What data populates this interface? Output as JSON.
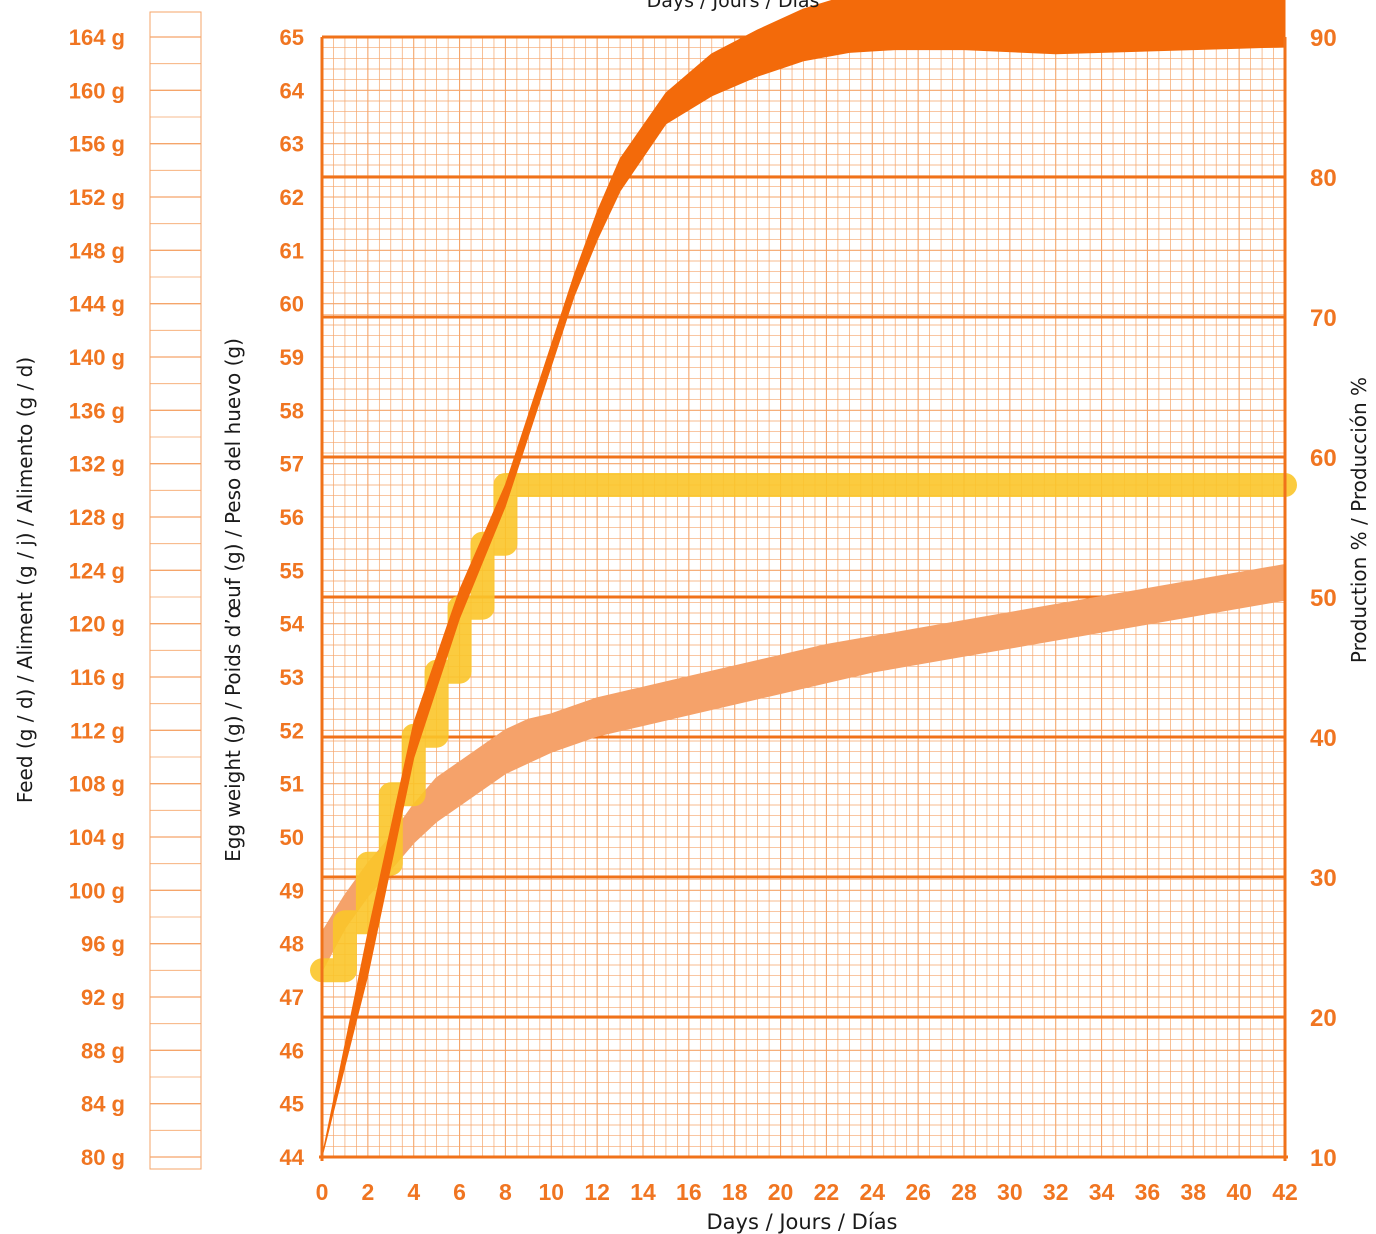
{
  "colors": {
    "accent": "#f07521",
    "grid_minor": "#f5a56a",
    "grid_major": "#f07219",
    "production_band": "#f36a0a",
    "egg_weight_band": "#f5a26a",
    "feed_line": "#fbc52a",
    "text_dark": "#1a1a1a"
  },
  "chart_data": {
    "type": "line",
    "top_title": "Days / Jours / Días",
    "xlabel": "Days / Jours / Días",
    "ylabel_feed": "Feed (g / d) / Aliment (g / j) / Alimento (g / d)",
    "ylabel_egg": "Egg weight (g) / Poids d’œuf (g) / Peso del huevo (g)",
    "ylabel_production": "Production % / Producción %",
    "x_ticks": [
      "0",
      "2",
      "4",
      "6",
      "8",
      "10",
      "12",
      "14",
      "16",
      "18",
      "20",
      "22",
      "24",
      "26",
      "28",
      "30",
      "32",
      "34",
      "36",
      "38",
      "40",
      "42"
    ],
    "xlim": [
      0,
      42
    ],
    "y_egg_ticks": [
      "44",
      "45",
      "46",
      "47",
      "48",
      "49",
      "50",
      "51",
      "52",
      "53",
      "54",
      "55",
      "56",
      "57",
      "58",
      "59",
      "60",
      "61",
      "62",
      "63",
      "64",
      "65"
    ],
    "y_egg_lim": [
      44,
      65
    ],
    "y_prod_ticks": [
      "10",
      "20",
      "30",
      "40",
      "50",
      "60",
      "70",
      "80",
      "90"
    ],
    "y_prod_lim": [
      10,
      90
    ],
    "y_feed_ticks": [
      "80 g",
      "84 g",
      "88 g",
      "92 g",
      "96 g",
      "100 g",
      "104 g",
      "108 g",
      "112 g",
      "116 g",
      "120 g",
      "124 g",
      "128 g",
      "132 g",
      "136 g",
      "140 g",
      "144 g",
      "148 g",
      "152 g",
      "156 g",
      "160 g",
      "164 g"
    ],
    "y_feed_lim": [
      80,
      164
    ],
    "series": [
      {
        "kind": "band",
        "axis": "production",
        "x": [
          0,
          2,
          4,
          6,
          8,
          9,
          10,
          11,
          12,
          13,
          15,
          17,
          19,
          21,
          23,
          25,
          28,
          32,
          36,
          40,
          42
        ],
        "upper": [
          10,
          26,
          41,
          50.5,
          58,
          63,
          68,
          73,
          77.5,
          81.3,
          86,
          88.8,
          90.5,
          92,
          93,
          93.6,
          93.8,
          94.2,
          94.4,
          94.6,
          94.7
        ],
        "lower": [
          10,
          23,
          38.5,
          48.5,
          56.5,
          61.5,
          66.5,
          71.5,
          75.5,
          79,
          83.8,
          85.8,
          87.2,
          88.3,
          88.9,
          89.1,
          89.1,
          88.8,
          89,
          89.2,
          89.3
        ]
      },
      {
        "kind": "band",
        "axis": "egg",
        "x": [
          0,
          1,
          2,
          3,
          4,
          5,
          6,
          7,
          8,
          9,
          10,
          12,
          14,
          16,
          18,
          20,
          22,
          24,
          26,
          28,
          30,
          32,
          34,
          36,
          38,
          40,
          42
        ],
        "upper": [
          48.2,
          48.9,
          49.5,
          50,
          50.6,
          51.1,
          51.4,
          51.7,
          52,
          52.2,
          52.3,
          52.6,
          52.8,
          53,
          53.2,
          53.4,
          53.6,
          53.75,
          53.9,
          54.05,
          54.2,
          54.35,
          54.5,
          54.65,
          54.8,
          54.95,
          55.1
        ],
        "lower": [
          47.5,
          48.3,
          48.9,
          49.4,
          49.9,
          50.3,
          50.6,
          50.9,
          51.2,
          51.4,
          51.6,
          51.9,
          52.1,
          52.3,
          52.5,
          52.7,
          52.9,
          53.1,
          53.25,
          53.4,
          53.55,
          53.7,
          53.85,
          54,
          54.15,
          54.3,
          54.45
        ]
      },
      {
        "kind": "step",
        "axis": "egg",
        "x": [
          0,
          1,
          1,
          2,
          2,
          3,
          3,
          4,
          4,
          5,
          5,
          6,
          6,
          7,
          7,
          8,
          8,
          42
        ],
        "value": [
          47.5,
          47.5,
          48.4,
          48.4,
          49.5,
          49.5,
          50.8,
          50.8,
          51.9,
          51.9,
          53.1,
          53.1,
          54.3,
          54.3,
          55.5,
          55.5,
          56.6,
          56.6
        ]
      }
    ]
  }
}
